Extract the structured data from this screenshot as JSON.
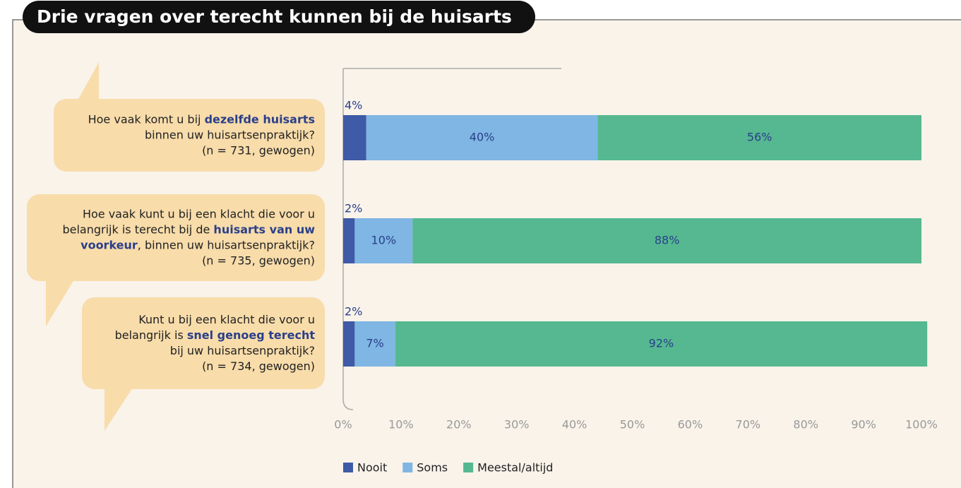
{
  "chart_data": {
    "type": "stacked-barh",
    "title": "Drie vragen over terecht kunnen bij de huisarts",
    "categories": [
      [
        [
          {
            "text": "Hoe vaak komt u bij "
          },
          {
            "text": "dezelfde huisarts",
            "bold": true
          }
        ],
        [
          {
            "text": "binnen uw huisartsenpraktijk?"
          }
        ],
        [
          {
            "text": "(n = 731, gewogen)"
          }
        ]
      ],
      [
        [
          {
            "text": "Hoe vaak kunt u bij een klacht die voor u"
          }
        ],
        [
          {
            "text": "belangrijk is terecht bij de "
          },
          {
            "text": "huisarts van uw",
            "bold": true
          }
        ],
        [
          {
            "text": "voorkeur",
            "bold": true
          },
          {
            "text": ", binnen uw huisartsenpraktijk?"
          }
        ],
        [
          {
            "text": "(n = 735, gewogen)"
          }
        ]
      ],
      [
        [
          {
            "text": "Kunt u bij een klacht die voor u"
          }
        ],
        [
          {
            "text": "belangrijk is "
          },
          {
            "text": "snel genoeg terecht",
            "bold": true
          }
        ],
        [
          {
            "text": "bij uw huisartsenpraktijk?"
          }
        ],
        [
          {
            "text": "(n = 734, gewogen)"
          }
        ]
      ]
    ],
    "series": [
      {
        "name": "Nooit",
        "color": "#3f5aa6",
        "values": [
          4,
          2,
          2
        ],
        "value_labels": [
          "4%",
          "2%",
          "2%"
        ]
      },
      {
        "name": "Soms",
        "color": "#7fb6e3",
        "values": [
          40,
          10,
          7
        ],
        "value_labels": [
          "40%",
          "10%",
          "7%"
        ]
      },
      {
        "name": "Meestal/altijd",
        "color": "#55b891",
        "values": [
          56,
          88,
          92
        ],
        "value_labels": [
          "56%",
          "88%",
          "92%"
        ]
      }
    ],
    "xlim": [
      0,
      100
    ],
    "xticks": [
      {
        "value": 0,
        "label": "0%"
      },
      {
        "value": 10,
        "label": "10%"
      },
      {
        "value": 20,
        "label": "20%"
      },
      {
        "value": 30,
        "label": "30%"
      },
      {
        "value": 40,
        "label": "40%"
      },
      {
        "value": 50,
        "label": "50%"
      },
      {
        "value": 60,
        "label": "60%"
      },
      {
        "value": 70,
        "label": "70%"
      },
      {
        "value": 80,
        "label": "80%"
      },
      {
        "value": 90,
        "label": "90%"
      },
      {
        "value": 100,
        "label": "100%"
      }
    ],
    "legend": "bottom"
  }
}
